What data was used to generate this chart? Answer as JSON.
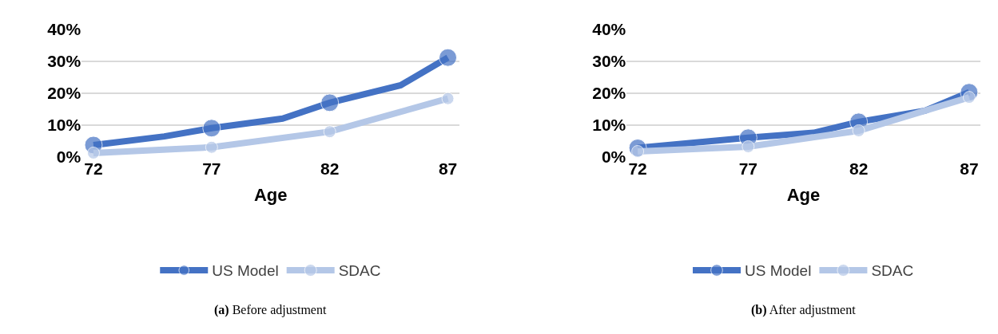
{
  "chart_data": [
    {
      "type": "line",
      "xlabel": "Age",
      "x": [
        72,
        75,
        77,
        80,
        82,
        85,
        87
      ],
      "xlim": [
        71.5,
        87.5
      ],
      "xticks": [
        72,
        77,
        82,
        87
      ],
      "ylim": [
        0,
        40
      ],
      "yticks": [
        {
          "value": 0,
          "label": "0%"
        },
        {
          "value": 10,
          "label": "10%"
        },
        {
          "value": 20,
          "label": "20%"
        },
        {
          "value": 30,
          "label": "30%"
        },
        {
          "value": 40,
          "label": "40%"
        }
      ],
      "grid": "y",
      "legend": "bottom",
      "marker": "circle",
      "line_style": "solid",
      "annotations": [
        "(a) Before adjustment"
      ],
      "series": [
        {
          "name": "US Model",
          "color": "#4472c4",
          "values": [
            3.7,
            6.4,
            9.0,
            12.0,
            17.0,
            22.5,
            31.2
          ]
        },
        {
          "name": "SDAC",
          "color": "#b4c7e7",
          "x": [
            72,
            77,
            82,
            87
          ],
          "values": [
            1.2,
            3.0,
            7.9,
            18.3
          ]
        }
      ]
    },
    {
      "type": "line",
      "xlabel": "Age",
      "x": [
        72,
        77,
        80,
        82,
        85,
        87
      ],
      "xlim": [
        71.5,
        87.5
      ],
      "xticks": [
        72,
        77,
        82,
        87
      ],
      "ylim": [
        0,
        40
      ],
      "yticks": [
        {
          "value": 0,
          "label": "0%"
        },
        {
          "value": 10,
          "label": "10%"
        },
        {
          "value": 20,
          "label": "20%"
        },
        {
          "value": 30,
          "label": "30%"
        },
        {
          "value": 40,
          "label": "40%"
        }
      ],
      "grid": "y",
      "legend": "bottom",
      "marker": "circle",
      "line_style": "solid",
      "annotations": [
        "(b) After adjustment"
      ],
      "series": [
        {
          "name": "US Model",
          "color": "#4472c4",
          "values": [
            2.8,
            6.0,
            7.6,
            11.0,
            14.5,
            20.3
          ]
        },
        {
          "name": "SDAC",
          "color": "#b4c7e7",
          "x": [
            72,
            77,
            82,
            87
          ],
          "values": [
            1.7,
            3.2,
            8.2,
            18.7
          ]
        }
      ]
    }
  ]
}
